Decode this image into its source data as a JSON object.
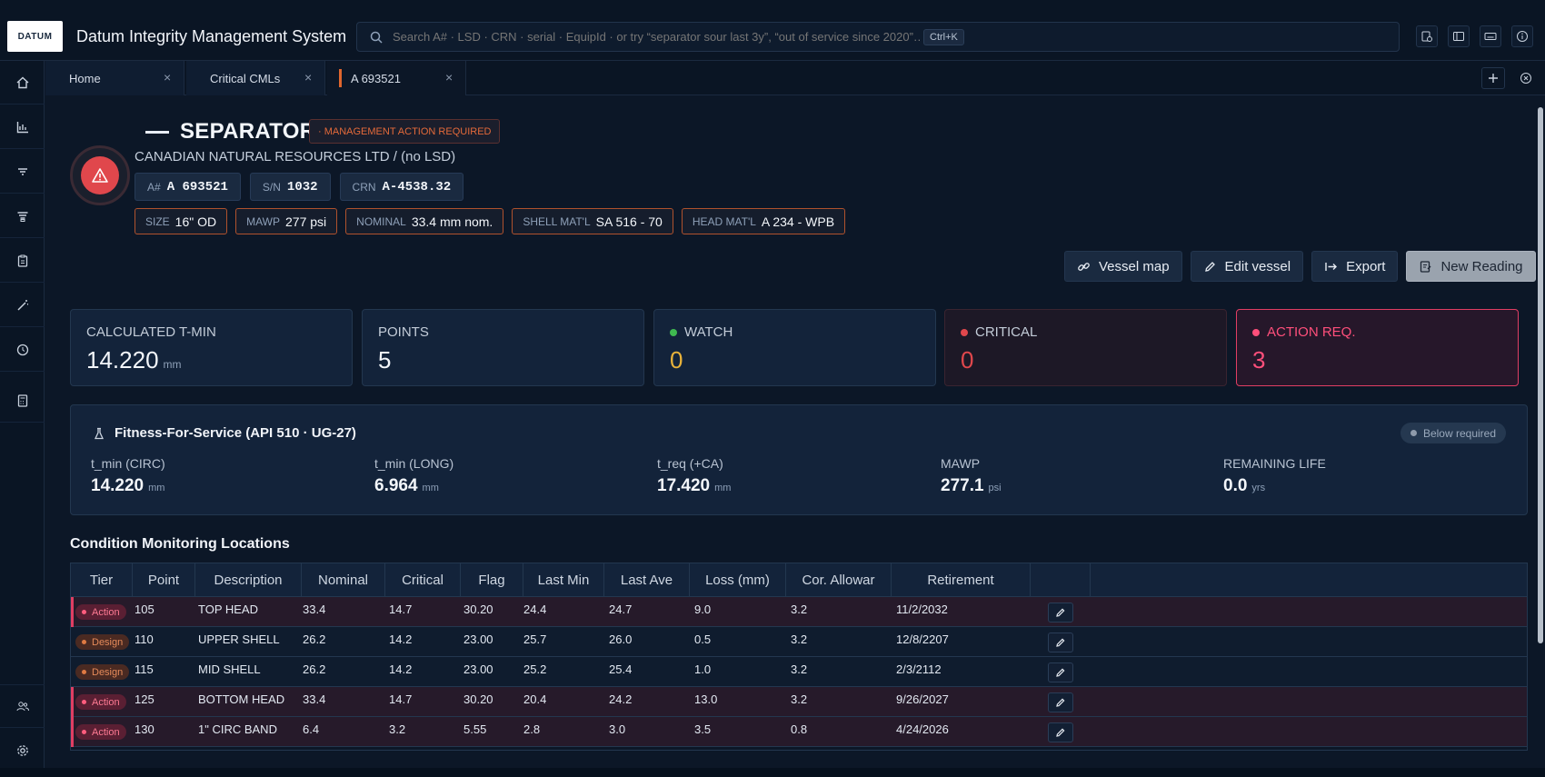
{
  "app": {
    "logo_text": "DATUM",
    "title": "Datum Integrity Management System"
  },
  "search": {
    "placeholder": "Search A# · LSD · CRN · serial · EquipId · or try “separator sour last 3y”, “out of service since 2020”…",
    "shortcut": "Ctrl+K"
  },
  "tabs": [
    {
      "label": "Home"
    },
    {
      "label": "Critical CMLs"
    },
    {
      "label": "A 693521",
      "active": true
    }
  ],
  "vessel": {
    "title": "SEPARATOR",
    "status_badge": "· MANAGEMENT ACTION REQUIRED",
    "owner": "CANADIAN NATURAL RESOURCES LTD / (no LSD)",
    "ids": [
      {
        "label": "A#",
        "value": "A 693521"
      },
      {
        "label": "S/N",
        "value": "1032"
      },
      {
        "label": "CRN",
        "value": "A-4538.32"
      }
    ],
    "specs": [
      {
        "label": "SIZE",
        "value": "16\" OD"
      },
      {
        "label": "MAWP",
        "value": "277 psi"
      },
      {
        "label": "NOMINAL",
        "value": "33.4 mm nom."
      },
      {
        "label": "SHELL MAT'L",
        "value": "SA 516 - 70"
      },
      {
        "label": "HEAD MAT'L",
        "value": "A 234 - WPB"
      }
    ]
  },
  "actions": {
    "vessel_map": "Vessel map",
    "edit_vessel": "Edit vessel",
    "export": "Export",
    "new_reading": "New Reading"
  },
  "stats": [
    {
      "label": "CALCULATED T-MIN",
      "value": "14.220",
      "unit": "mm"
    },
    {
      "label": "POINTS",
      "value": "5"
    },
    {
      "label": "WATCH",
      "value": "0",
      "color": "#e8b23a",
      "dot": "#3fb950"
    },
    {
      "label": "CRITICAL",
      "value": "0",
      "color": "#e0474c",
      "dot": "#e0474c"
    },
    {
      "label": "ACTION REQ.",
      "value": "3",
      "color": "#ff4f7b",
      "dot": "#ff4f7b"
    }
  ],
  "ffs": {
    "title": "Fitness-For-Service (API 510 · UG-27)",
    "badge": "Below required",
    "metrics": [
      {
        "label": "t_min (CIRC)",
        "value": "14.220",
        "unit": "mm"
      },
      {
        "label": "t_min (LONG)",
        "value": "6.964",
        "unit": "mm"
      },
      {
        "label": "t_req (+CA)",
        "value": "17.420",
        "unit": "mm"
      },
      {
        "label": "MAWP",
        "value": "277.1",
        "unit": "psi"
      },
      {
        "label": "REMAINING LIFE",
        "value": "0.0",
        "unit": "yrs"
      }
    ]
  },
  "cml": {
    "title": "Condition Monitoring Locations",
    "columns": [
      "Tier",
      "Point",
      "Description",
      "Nominal",
      "Critical",
      "Flag",
      "Last Min",
      "Last Ave",
      "Loss (mm)",
      "Cor. Allowar",
      "Retirement"
    ],
    "rows": [
      {
        "tier": "Action",
        "point": "105",
        "description": "TOP HEAD",
        "nominal": "33.4",
        "critical": "14.7",
        "flag": "30.20",
        "last_min": "24.4",
        "last_ave": "24.7",
        "loss": "9.0",
        "cor": "3.2",
        "retirement": "11/2/2032"
      },
      {
        "tier": "Design",
        "point": "110",
        "description": "UPPER SHELL",
        "nominal": "26.2",
        "critical": "14.2",
        "flag": "23.00",
        "last_min": "25.7",
        "last_ave": "26.0",
        "loss": "0.5",
        "cor": "3.2",
        "retirement": "12/8/2207"
      },
      {
        "tier": "Design",
        "point": "115",
        "description": "MID SHELL",
        "nominal": "26.2",
        "critical": "14.2",
        "flag": "23.00",
        "last_min": "25.2",
        "last_ave": "25.4",
        "loss": "1.0",
        "cor": "3.2",
        "retirement": "2/3/2112"
      },
      {
        "tier": "Action",
        "point": "125",
        "description": "BOTTOM HEAD",
        "nominal": "33.4",
        "critical": "14.7",
        "flag": "30.20",
        "last_min": "20.4",
        "last_ave": "24.2",
        "loss": "13.0",
        "cor": "3.2",
        "retirement": "9/26/2027"
      },
      {
        "tier": "Action",
        "point": "130",
        "description": "1\" CIRC BAND",
        "nominal": "6.4",
        "critical": "3.2",
        "flag": "5.55",
        "last_min": "2.8",
        "last_ave": "3.0",
        "loss": "3.5",
        "cor": "0.8",
        "retirement": "4/24/2026"
      }
    ]
  }
}
